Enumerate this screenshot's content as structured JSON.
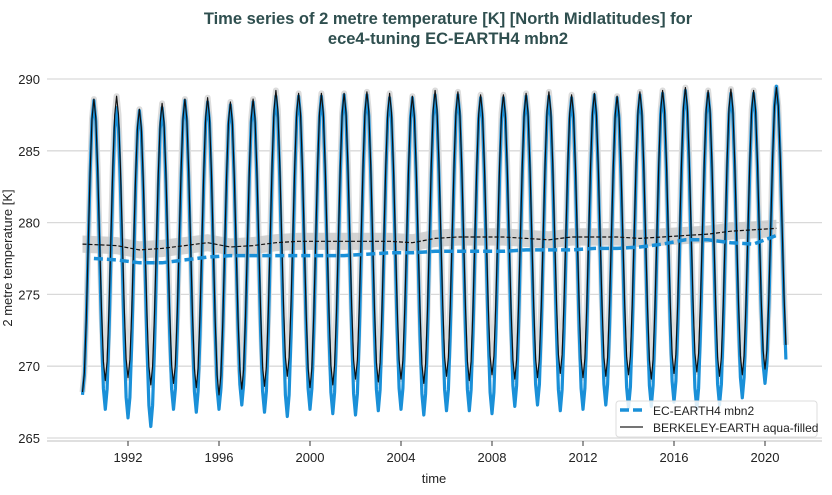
{
  "chart_data": {
    "type": "line",
    "title": "Time series of 2 metre temperature [K] [North Midlatitudes] for",
    "subtitle": "ece4-tuning EC-EARTH4 mbn2",
    "xlabel": "time",
    "ylabel": "2 metre temperature [K]",
    "xlim": [
      1989.9,
      2021.3
    ],
    "ylim": [
      264.8,
      290.7
    ],
    "x_ticks": [
      "1992",
      "1996",
      "2000",
      "2004",
      "2008",
      "2012",
      "2016",
      "2020"
    ],
    "y_ticks": [
      "265",
      "270",
      "275",
      "280",
      "285",
      "290"
    ],
    "grid": "horizontal",
    "legend_position": "bottom-right",
    "years": [
      1990,
      1991,
      1992,
      1993,
      1994,
      1995,
      1996,
      1997,
      1998,
      1999,
      2000,
      2001,
      2002,
      2003,
      2004,
      2005,
      2006,
      2007,
      2008,
      2009,
      2010,
      2011,
      2012,
      2013,
      2014,
      2015,
      2016,
      2017,
      2018,
      2019,
      2020
    ],
    "series": [
      {
        "name": "EC-EARTH4 mbn2",
        "color": "#1a90d8",
        "style": "solid monthly, thick dashed running mean",
        "july_peaks": [
          288.5,
          288.0,
          287.8,
          288.0,
          288.5,
          288.4,
          288.2,
          288.4,
          288.8,
          288.8,
          288.8,
          288.9,
          288.9,
          288.7,
          288.7,
          288.9,
          288.9,
          288.7,
          288.7,
          288.8,
          288.8,
          288.7,
          288.9,
          288.7,
          288.9,
          289.0,
          289.2,
          289.0,
          289.0,
          289.0,
          289.5
        ],
        "january_troughs": [
          268.0,
          267.0,
          266.4,
          265.8,
          267.0,
          266.8,
          267.0,
          267.3,
          266.8,
          266.5,
          267.0,
          266.7,
          266.6,
          266.9,
          267.0,
          266.6,
          266.9,
          266.9,
          266.7,
          267.2,
          267.3,
          266.9,
          267.0,
          267.3,
          267.1,
          267.2,
          267.5,
          267.0,
          267.3,
          267.8,
          268.8,
          269.1
        ],
        "running_mean": [
          277.5,
          277.4,
          277.2,
          277.2,
          277.4,
          277.6,
          277.7,
          277.7,
          277.7,
          277.7,
          277.7,
          277.7,
          277.8,
          277.9,
          277.9,
          278.0,
          278.0,
          278.0,
          278.0,
          278.1,
          278.1,
          278.1,
          278.2,
          278.2,
          278.3,
          278.5,
          278.8,
          278.8,
          278.6,
          278.5,
          279.1
        ]
      },
      {
        "name": "BERKELEY-EARTH aqua-filled",
        "color": "#000000",
        "style": "thin solid monthly with grey uncertainty band, dashed running mean",
        "july_peaks": [
          288.6,
          288.8,
          287.9,
          288.3,
          288.6,
          288.7,
          288.4,
          288.6,
          289.2,
          289.0,
          289.0,
          289.0,
          289.1,
          289.0,
          288.8,
          289.2,
          289.1,
          288.9,
          288.9,
          289.0,
          289.1,
          288.9,
          289.0,
          288.8,
          289.1,
          289.2,
          289.4,
          289.2,
          289.3,
          289.2,
          289.4
        ],
        "january_troughs": [
          268.2,
          269.0,
          269.2,
          268.7,
          268.8,
          268.5,
          268.0,
          268.4,
          268.6,
          269.3,
          268.5,
          268.7,
          269.1,
          268.9,
          269.1,
          268.8,
          269.3,
          269.0,
          269.4,
          269.1,
          269.2,
          269.5,
          269.2,
          269.3,
          269.4,
          269.1,
          269.5,
          269.6,
          269.3,
          269.4,
          269.8,
          270.2
        ],
        "running_mean": [
          278.5,
          278.4,
          278.1,
          278.2,
          278.4,
          278.6,
          278.3,
          278.4,
          278.6,
          278.7,
          278.7,
          278.7,
          278.7,
          278.7,
          278.6,
          278.9,
          279.0,
          279.0,
          279.0,
          278.9,
          278.8,
          279.0,
          279.0,
          279.0,
          278.9,
          279.0,
          279.1,
          279.2,
          279.4,
          279.5,
          279.6
        ]
      }
    ]
  }
}
